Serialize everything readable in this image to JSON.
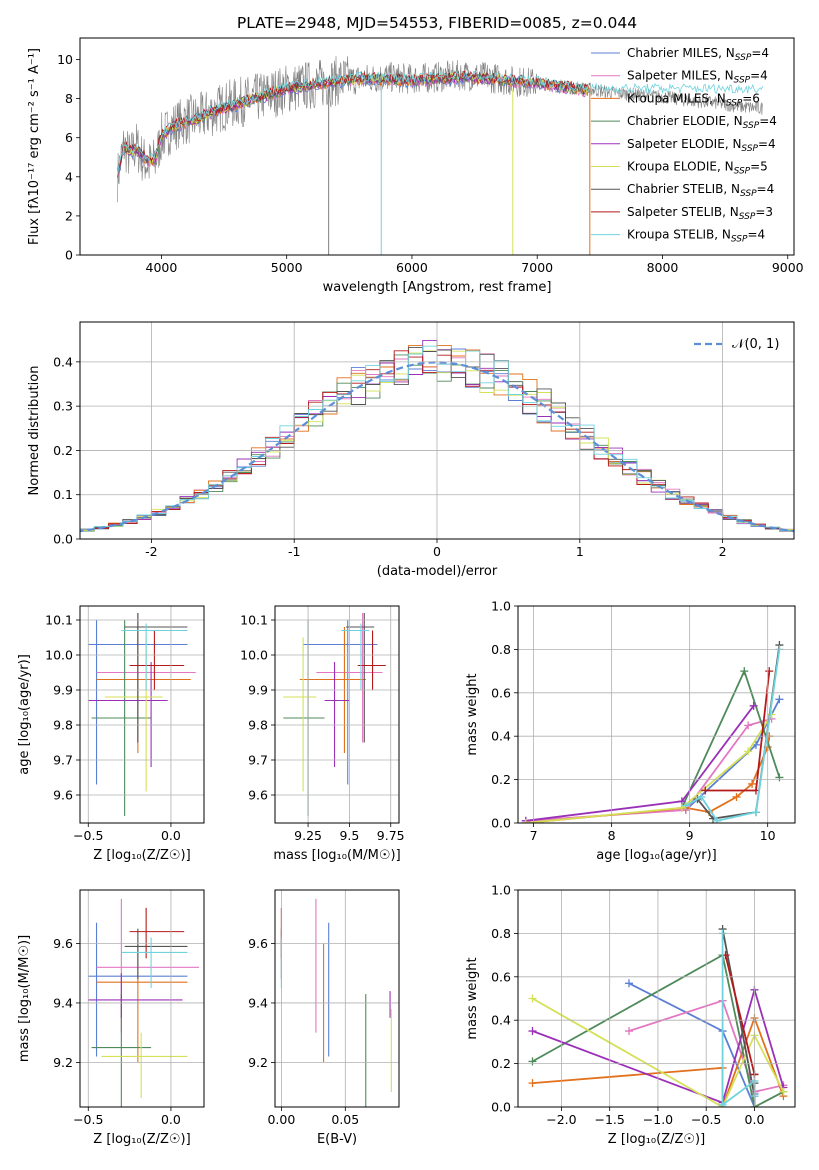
{
  "colors": {
    "chabrier_miles": "#5b7fd6",
    "salpeter_miles": "#e377c2",
    "kroupa_miles": "#e2711d",
    "chabrier_elodie": "#4f8a5b",
    "salpeter_elodie": "#9b30b8",
    "kroupa_elodie": "#d4e157",
    "chabrier_stelib": "#555555",
    "salpeter_stelib": "#b51a1a",
    "kroupa_stelib": "#6fd3de",
    "data": "#808080",
    "normal": "#5b8fd8",
    "grid": "#b0b0b0"
  },
  "models": [
    {
      "key": "chabrier_miles",
      "imf": "Chabrier",
      "lib": "MILES",
      "nssp": "4"
    },
    {
      "key": "salpeter_miles",
      "imf": "Salpeter",
      "lib": "MILES",
      "nssp": "4"
    },
    {
      "key": "kroupa_miles",
      "imf": "Kroupa",
      "lib": "MILES",
      "nssp": "6"
    },
    {
      "key": "chabrier_elodie",
      "imf": "Chabrier",
      "lib": "ELODIE",
      "nssp": "4"
    },
    {
      "key": "salpeter_elodie",
      "imf": "Salpeter",
      "lib": "ELODIE",
      "nssp": "4"
    },
    {
      "key": "kroupa_elodie",
      "imf": "Kroupa",
      "lib": "ELODIE",
      "nssp": "5"
    },
    {
      "key": "chabrier_stelib",
      "imf": "Chabrier",
      "lib": "STELIB",
      "nssp": "4"
    },
    {
      "key": "salpeter_stelib",
      "imf": "Salpeter",
      "lib": "STELIB",
      "nssp": "3"
    },
    {
      "key": "kroupa_stelib",
      "imf": "Kroupa",
      "lib": "STELIB",
      "nssp": "4"
    }
  ],
  "chart_data": [
    {
      "id": "spectrum",
      "type": "line",
      "title": "PLATE=2948, MJD=54553, FIBERID=0085, z=0.044",
      "xlabel": "wavelength [Angstrom, rest frame]",
      "ylabel": "Flux [fλ10⁻¹⁷ erg cm⁻² s⁻¹ A⁻¹]",
      "xlim": [
        3350,
        9050
      ],
      "ylim": [
        0,
        11.1
      ],
      "xticks": [
        4000,
        5000,
        6000,
        7000,
        8000,
        9000
      ],
      "yticks": [
        0,
        2,
        4,
        6,
        8,
        10
      ],
      "legend": "top-right",
      "data_x": [
        3650,
        3700,
        3750,
        3800,
        3850,
        3900,
        3950,
        4000,
        4100,
        4200,
        4300,
        4400,
        4500,
        4600,
        4700,
        4800,
        4900,
        5000,
        5200,
        5400,
        5600,
        5800,
        6000,
        6200,
        6400,
        6600,
        6800,
        7000,
        7200,
        7400,
        7600,
        7800,
        8000,
        8200,
        8400,
        8600,
        8800
      ],
      "data_y": [
        4.0,
        5.6,
        5.0,
        5.6,
        4.9,
        4.6,
        4.8,
        6.0,
        6.6,
        6.9,
        7.0,
        7.3,
        7.6,
        7.8,
        7.9,
        8.1,
        8.3,
        8.5,
        8.7,
        8.9,
        9.0,
        9.1,
        9.0,
        9.1,
        9.2,
        9.1,
        8.9,
        8.8,
        8.6,
        8.5,
        8.3,
        8.2,
        8.1,
        7.9,
        7.8,
        7.6,
        7.5
      ],
      "model_x": [
        3650,
        3700,
        3750,
        3800,
        3850,
        3900,
        3950,
        4000,
        4100,
        4200,
        4300,
        4400,
        4500,
        4600,
        4700,
        4800,
        4900,
        5000,
        5200,
        5400,
        5600,
        5800,
        6000,
        6200,
        6400,
        6600,
        6800,
        7000,
        7200,
        7400
      ],
      "model_y": [
        4.2,
        5.5,
        5.3,
        5.4,
        5.1,
        4.8,
        4.9,
        6.1,
        6.6,
        6.8,
        7.0,
        7.3,
        7.5,
        7.7,
        7.9,
        8.1,
        8.3,
        8.5,
        8.7,
        8.9,
        9.0,
        9.0,
        8.9,
        9.0,
        9.1,
        9.0,
        8.9,
        8.8,
        8.6,
        8.4
      ]
    },
    {
      "id": "residuals",
      "type": "line",
      "xlabel": "(data-model)/error",
      "ylabel": "Normed distribution",
      "xlim": [
        -2.5,
        2.5
      ],
      "ylim": [
        0,
        0.49
      ],
      "xticks": [
        -2,
        -1,
        0,
        1,
        2
      ],
      "yticks": [
        0.0,
        0.1,
        0.2,
        0.3,
        0.4
      ],
      "legend": "top-right",
      "normal_label": "𝒩(0, 1)"
    },
    {
      "id": "age_vs_Z",
      "type": "scatter",
      "xlabel": "Z [log₁₀(Z/Z☉)]",
      "ylabel": "age  [log₁₀(age/yr)]",
      "xlim": [
        -0.55,
        0.2
      ],
      "ylim": [
        9.52,
        10.14
      ],
      "xticks": [
        -0.5,
        0.0
      ],
      "xtick_labels": [
        "−0.5",
        "0.0"
      ],
      "yticks": [
        9.6,
        9.7,
        9.8,
        9.9,
        10.0,
        10.1
      ],
      "points": [
        {
          "series": "chabrier_miles",
          "x": -0.45,
          "y": 10.03,
          "xlo": -0.5,
          "xhi": 0.1,
          "ylo": 9.63,
          "yhi": 10.1
        },
        {
          "series": "salpeter_miles",
          "x": -0.2,
          "y": 9.95,
          "xlo": -0.45,
          "xhi": 0.15,
          "ylo": 9.75,
          "yhi": 10.12
        },
        {
          "series": "kroupa_miles",
          "x": -0.2,
          "y": 9.93,
          "xlo": -0.45,
          "xhi": 0.12,
          "ylo": 9.72,
          "yhi": 10.08
        },
        {
          "series": "chabrier_elodie",
          "x": -0.28,
          "y": 9.82,
          "xlo": -0.48,
          "xhi": -0.12,
          "ylo": 9.54,
          "yhi": 10.1
        },
        {
          "series": "salpeter_elodie",
          "x": -0.12,
          "y": 9.87,
          "xlo": -0.5,
          "xhi": -0.02,
          "ylo": 9.68,
          "yhi": 9.98
        },
        {
          "series": "kroupa_elodie",
          "x": -0.15,
          "y": 9.88,
          "xlo": -0.4,
          "xhi": -0.05,
          "ylo": 9.61,
          "yhi": 10.05
        },
        {
          "series": "chabrier_stelib",
          "x": -0.2,
          "y": 10.08,
          "xlo": -0.28,
          "xhi": 0.1,
          "ylo": 9.75,
          "yhi": 10.12
        },
        {
          "series": "salpeter_stelib",
          "x": -0.1,
          "y": 9.97,
          "xlo": -0.25,
          "xhi": 0.08,
          "ylo": 9.9,
          "yhi": 10.07
        },
        {
          "series": "kroupa_stelib",
          "x": -0.15,
          "y": 10.07,
          "xlo": -0.3,
          "xhi": 0.1,
          "ylo": 9.9,
          "yhi": 10.09
        }
      ]
    },
    {
      "id": "age_vs_mass",
      "type": "scatter",
      "xlabel": "mass [log₁₀(M/M☉)]",
      "ylabel": "",
      "xlim": [
        9.05,
        9.8
      ],
      "ylim": [
        9.52,
        10.14
      ],
      "xticks": [
        9.25,
        9.5,
        9.75
      ],
      "yticks": [
        9.6,
        9.7,
        9.8,
        9.9,
        10.0,
        10.1
      ],
      "points": [
        {
          "series": "chabrier_miles",
          "x": 9.49,
          "y": 10.03,
          "xlo": 9.22,
          "xhi": 9.67,
          "ylo": 9.63,
          "yhi": 10.1
        },
        {
          "series": "salpeter_miles",
          "x": 9.58,
          "y": 9.95,
          "xlo": 9.3,
          "xhi": 9.7,
          "ylo": 9.75,
          "yhi": 10.12
        },
        {
          "series": "kroupa_miles",
          "x": 9.47,
          "y": 9.93,
          "xlo": 9.2,
          "xhi": 9.6,
          "ylo": 9.72,
          "yhi": 10.08
        },
        {
          "series": "chabrier_elodie",
          "x": 9.25,
          "y": 9.82,
          "xlo": 9.1,
          "xhi": 9.35,
          "ylo": 9.54,
          "yhi": 10.1
        },
        {
          "series": "salpeter_elodie",
          "x": 9.41,
          "y": 9.87,
          "xlo": 9.35,
          "xhi": 9.5,
          "ylo": 9.68,
          "yhi": 9.98
        },
        {
          "series": "kroupa_elodie",
          "x": 9.22,
          "y": 9.88,
          "xlo": 9.1,
          "xhi": 9.3,
          "ylo": 9.61,
          "yhi": 10.05
        },
        {
          "series": "chabrier_stelib",
          "x": 9.59,
          "y": 10.08,
          "xlo": 9.48,
          "xhi": 9.65,
          "ylo": 9.75,
          "yhi": 10.12
        },
        {
          "series": "salpeter_stelib",
          "x": 9.64,
          "y": 9.97,
          "xlo": 9.55,
          "xhi": 9.72,
          "ylo": 9.9,
          "yhi": 10.07
        },
        {
          "series": "kroupa_stelib",
          "x": 9.57,
          "y": 10.07,
          "xlo": 9.45,
          "xhi": 9.62,
          "ylo": 9.9,
          "yhi": 10.09
        }
      ]
    },
    {
      "id": "weight_vs_age",
      "type": "line",
      "xlabel": "age  [log₁₀(age/yr)]",
      "ylabel": "mass weight",
      "xlim": [
        6.8,
        10.35
      ],
      "ylim": [
        0,
        1.0
      ],
      "xticks": [
        7,
        8,
        9,
        10
      ],
      "yticks": [
        0.0,
        0.2,
        0.4,
        0.6,
        0.8,
        1.0
      ],
      "series": [
        {
          "key": "chabrier_miles",
          "x": [
            8.95,
            9.85,
            10.15
          ],
          "y": [
            0.06,
            0.36,
            0.57
          ]
        },
        {
          "key": "salpeter_miles",
          "x": [
            6.9,
            8.95,
            9.75,
            10.05
          ],
          "y": [
            0.01,
            0.06,
            0.45,
            0.48
          ]
        },
        {
          "key": "kroupa_miles",
          "x": [
            6.9,
            8.95,
            9.25,
            9.6,
            9.8,
            10.0,
            10.02
          ],
          "y": [
            0.0,
            0.07,
            0.05,
            0.12,
            0.18,
            0.35,
            0.4
          ]
        },
        {
          "key": "chabrier_elodie",
          "x": [
            8.9,
            9.7,
            10.15
          ],
          "y": [
            0.07,
            0.7,
            0.21
          ]
        },
        {
          "key": "salpeter_elodie",
          "x": [
            6.9,
            8.9,
            9.82
          ],
          "y": [
            0.01,
            0.1,
            0.54
          ]
        },
        {
          "key": "kroupa_elodie",
          "x": [
            6.9,
            8.9,
            9.75,
            10.05
          ],
          "y": [
            0.0,
            0.07,
            0.33,
            0.5
          ]
        },
        {
          "key": "chabrier_stelib",
          "x": [
            9.1,
            9.3,
            9.85,
            10.15
          ],
          "y": [
            0.11,
            0.02,
            0.05,
            0.82
          ]
        },
        {
          "key": "salpeter_stelib",
          "x": [
            9.2,
            9.85,
            10.02
          ],
          "y": [
            0.15,
            0.15,
            0.7
          ]
        },
        {
          "key": "kroupa_stelib",
          "x": [
            8.95,
            9.15,
            9.35,
            9.85,
            10.15
          ],
          "y": [
            0.08,
            0.12,
            0.01,
            0.05,
            0.8
          ]
        }
      ]
    },
    {
      "id": "mass_vs_Z",
      "type": "scatter",
      "xlabel": "Z [log₁₀(Z/Z☉)]",
      "ylabel": "mass [log₁₀(M/M☉)]",
      "xlim": [
        -0.55,
        0.2
      ],
      "ylim": [
        9.05,
        9.78
      ],
      "xticks": [
        -0.5,
        0.0
      ],
      "xtick_labels": [
        "−0.5",
        "0.0"
      ],
      "yticks": [
        9.2,
        9.4,
        9.6
      ],
      "points": [
        {
          "series": "chabrier_miles",
          "x": -0.45,
          "y": 9.49,
          "xlo": -0.5,
          "xhi": 0.1,
          "ylo": 9.22,
          "yhi": 9.67
        },
        {
          "series": "salpeter_miles",
          "x": -0.3,
          "y": 9.52,
          "xlo": -0.45,
          "xhi": 0.17,
          "ylo": 9.3,
          "yhi": 9.75
        },
        {
          "series": "kroupa_miles",
          "x": -0.2,
          "y": 9.47,
          "xlo": -0.45,
          "xhi": 0.1,
          "ylo": 9.2,
          "yhi": 9.6
        },
        {
          "series": "chabrier_elodie",
          "x": -0.3,
          "y": 9.25,
          "xlo": -0.48,
          "xhi": -0.12,
          "ylo": 9.05,
          "yhi": 9.43
        },
        {
          "series": "salpeter_elodie",
          "x": -0.3,
          "y": 9.41,
          "xlo": -0.5,
          "xhi": 0.07,
          "ylo": 9.35,
          "yhi": 9.5
        },
        {
          "series": "kroupa_elodie",
          "x": -0.18,
          "y": 9.22,
          "xlo": -0.42,
          "xhi": 0.1,
          "ylo": 9.08,
          "yhi": 9.3
        },
        {
          "series": "chabrier_stelib",
          "x": -0.2,
          "y": 9.59,
          "xlo": -0.28,
          "xhi": 0.1,
          "ylo": 9.48,
          "yhi": 9.65
        },
        {
          "series": "salpeter_stelib",
          "x": -0.15,
          "y": 9.64,
          "xlo": -0.25,
          "xhi": 0.08,
          "ylo": 9.55,
          "yhi": 9.72
        },
        {
          "series": "kroupa_stelib",
          "x": -0.12,
          "y": 9.57,
          "xlo": -0.3,
          "xhi": 0.1,
          "ylo": 9.45,
          "yhi": 9.62
        }
      ]
    },
    {
      "id": "mass_vs_ebv",
      "type": "scatter",
      "xlabel": "E(B-V)",
      "ylabel": "",
      "xlim": [
        -0.005,
        0.092
      ],
      "ylim": [
        9.05,
        9.78
      ],
      "xticks": [
        0.0,
        0.05
      ],
      "xtick_labels": [
        "0.00",
        "0.05"
      ],
      "yticks": [
        9.2,
        9.4,
        9.6
      ],
      "points": [
        {
          "series": "chabrier_miles",
          "x": 0.037,
          "y": 9.49,
          "ylo": 9.22,
          "yhi": 9.67
        },
        {
          "series": "salpeter_miles",
          "x": 0.027,
          "y": 9.52,
          "ylo": 9.3,
          "yhi": 9.75
        },
        {
          "series": "kroupa_miles",
          "x": 0.033,
          "y": 9.47,
          "ylo": 9.2,
          "yhi": 9.6
        },
        {
          "series": "chabrier_elodie",
          "x": 0.066,
          "y": 9.25,
          "ylo": 9.05,
          "yhi": 9.43
        },
        {
          "series": "salpeter_elodie",
          "x": 0.085,
          "y": 9.41,
          "ylo": 9.35,
          "yhi": 9.44
        },
        {
          "series": "kroupa_elodie",
          "x": 0.086,
          "y": 9.22,
          "ylo": 9.1,
          "yhi": 9.38
        },
        {
          "series": "chabrier_stelib",
          "x": 0.0,
          "y": 9.59,
          "ylo": 9.48,
          "yhi": 9.65
        },
        {
          "series": "salpeter_stelib",
          "x": 0.0,
          "y": 9.64,
          "ylo": 9.55,
          "yhi": 9.72
        },
        {
          "series": "kroupa_stelib",
          "x": 0.0,
          "y": 9.57,
          "ylo": 9.45,
          "yhi": 9.62
        }
      ]
    },
    {
      "id": "weight_vs_Z",
      "type": "line",
      "xlabel": "Z [log₁₀(Z/Z☉)]",
      "ylabel": "mass weight",
      "xlim": [
        -2.45,
        0.42
      ],
      "ylim": [
        0,
        1.0
      ],
      "xticks": [
        -2.0,
        -1.5,
        -1.0,
        -0.5,
        0.0
      ],
      "xtick_labels": [
        "−2.0",
        "−1.5",
        "−1.0",
        "−0.5",
        "0.0"
      ],
      "yticks": [
        0.0,
        0.2,
        0.4,
        0.6,
        0.8,
        1.0
      ],
      "series": [
        {
          "key": "chabrier_miles",
          "x": [
            -1.3,
            -0.33,
            0.0,
            0.0
          ],
          "y": [
            0.57,
            0.35,
            0.0,
            0.06
          ]
        },
        {
          "key": "salpeter_miles",
          "x": [
            -1.3,
            -0.33,
            0.0,
            0.3
          ],
          "y": [
            0.35,
            0.49,
            0.07,
            0.1
          ]
        },
        {
          "key": "kroupa_miles",
          "x": [
            -2.3,
            -0.33,
            -0.33,
            0.0,
            0.3
          ],
          "y": [
            0.11,
            0.18,
            0.0,
            0.41,
            0.05
          ]
        },
        {
          "key": "chabrier_elodie",
          "x": [
            -2.3,
            -0.33,
            0.0,
            0.3
          ],
          "y": [
            0.21,
            0.7,
            0.0,
            0.07
          ]
        },
        {
          "key": "salpeter_elodie",
          "x": [
            -2.3,
            -0.33,
            0.0,
            0.3
          ],
          "y": [
            0.35,
            0.02,
            0.54,
            0.09
          ]
        },
        {
          "key": "kroupa_elodie",
          "x": [
            -2.3,
            -0.33,
            0.0,
            0.3
          ],
          "y": [
            0.5,
            0.0,
            0.33,
            0.07
          ]
        },
        {
          "key": "chabrier_stelib",
          "x": [
            -0.33,
            0.0,
            0.0
          ],
          "y": [
            0.82,
            0.05,
            0.11
          ]
        },
        {
          "key": "salpeter_stelib",
          "x": [
            -0.3,
            0.0,
            0.0
          ],
          "y": [
            0.7,
            0.15,
            0.15
          ]
        },
        {
          "key": "kroupa_stelib",
          "x": [
            -0.33,
            -0.33,
            0.0,
            0.0
          ],
          "y": [
            0.8,
            0.01,
            0.12,
            0.05
          ]
        }
      ]
    }
  ]
}
